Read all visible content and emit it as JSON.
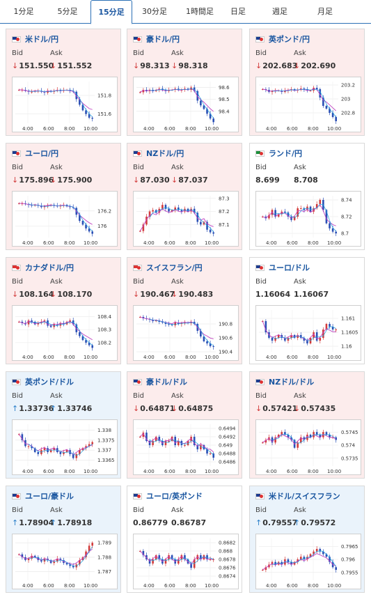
{
  "tabs": [
    {
      "label": "1分足",
      "active": false
    },
    {
      "label": "5分足",
      "active": false
    },
    {
      "label": "15分足",
      "active": true
    },
    {
      "label": "30分足",
      "active": false
    },
    {
      "label": "1時間足",
      "active": false
    },
    {
      "label": "日足",
      "active": false
    },
    {
      "label": "週足",
      "active": false
    },
    {
      "label": "月足",
      "active": false
    }
  ],
  "labels": {
    "bid": "Bid",
    "ask": "Ask"
  },
  "colors": {
    "up_candle": "#d23b3b",
    "down_candle": "#2a4fb5",
    "ma_line": "#c040c0",
    "ma_line2": "#1aa0e0",
    "card_down": "#fcecec",
    "card_up": "#eaf3fb"
  },
  "cards": [
    {
      "title": "米ドル/円",
      "trend": "down",
      "flag": [
        "#1d3c8f",
        "#d33"
      ],
      "bid": "151.550",
      "ask": "151.552",
      "chart_data": {
        "type": "candlestick",
        "x_ticks": [
          "4:00",
          "6:00",
          "8:00",
          "10:00"
        ],
        "y_ticks": [
          "151.8",
          "151.6"
        ],
        "ylim": [
          151.5,
          151.95
        ],
        "profile": [
          151.86,
          151.86,
          151.85,
          151.84,
          151.84,
          151.85,
          151.85,
          151.84,
          151.83,
          151.85,
          151.84,
          151.85,
          151.86,
          151.85,
          151.86,
          151.86,
          151.85,
          151.84,
          151.76,
          151.7,
          151.64,
          151.6,
          151.56,
          151.55
        ]
      }
    },
    {
      "title": "豪ドル/円",
      "trend": "down",
      "flag": [
        "#1d3c8f",
        "#d33"
      ],
      "bid": "98.313",
      "ask": "98.318",
      "chart_data": {
        "type": "candlestick",
        "x_ticks": [
          "4:00",
          "6:00",
          "8:00",
          "10:00"
        ],
        "y_ticks": [
          "98.6",
          "98.5",
          "98.4"
        ],
        "ylim": [
          98.3,
          98.65
        ],
        "profile": [
          98.56,
          98.58,
          98.57,
          98.58,
          98.57,
          98.58,
          98.59,
          98.58,
          98.57,
          98.58,
          98.58,
          98.59,
          98.58,
          98.58,
          98.59,
          98.58,
          98.6,
          98.57,
          98.49,
          98.45,
          98.42,
          98.38,
          98.34,
          98.31
        ]
      }
    },
    {
      "title": "英ポンド/円",
      "trend": "down",
      "flag": [
        "#1d3c8f",
        "#d33"
      ],
      "bid": "202.683",
      "ask": "202.690",
      "chart_data": {
        "type": "candlestick",
        "x_ticks": [
          "4:00",
          "6:00",
          "8:00",
          "10:00"
        ],
        "y_ticks": [
          "203.2",
          "203",
          "202.8"
        ],
        "ylim": [
          202.65,
          203.25
        ],
        "profile": [
          203.14,
          203.13,
          203.1,
          203.11,
          203.12,
          203.12,
          203.1,
          203.12,
          203.13,
          203.14,
          203.12,
          203.13,
          203.15,
          203.14,
          203.12,
          203.12,
          203.16,
          203.14,
          203.02,
          202.9,
          202.86,
          202.8,
          202.74,
          202.68
        ]
      }
    },
    {
      "title": "ユーロ/円",
      "trend": "down",
      "flag": [
        "#1d3c8f",
        "#d33"
      ],
      "bid": "175.896",
      "ask": "175.900",
      "chart_data": {
        "type": "candlestick",
        "x_ticks": [
          "4:00",
          "6:00",
          "8:00",
          "10:00"
        ],
        "y_ticks": [
          "176.2",
          "176"
        ],
        "ylim": [
          175.85,
          176.4
        ],
        "profile": [
          176.3,
          176.3,
          176.29,
          176.28,
          176.27,
          176.28,
          176.27,
          176.25,
          176.26,
          176.27,
          176.28,
          176.27,
          176.26,
          176.27,
          176.28,
          176.26,
          176.25,
          176.24,
          176.15,
          176.07,
          176.02,
          175.97,
          175.93,
          175.9
        ]
      }
    },
    {
      "title": "NZドル/円",
      "trend": "down",
      "flag": [
        "#1d3c8f",
        "#d33"
      ],
      "bid": "87.030",
      "ask": "87.037",
      "chart_data": {
        "type": "candlestick",
        "x_ticks": [
          "4:00",
          "6:00",
          "8:00",
          "10:00"
        ],
        "y_ticks": [
          "87.3",
          "87.2",
          "87.1"
        ],
        "ylim": [
          87.0,
          87.32
        ],
        "profile": [
          87.05,
          87.1,
          87.16,
          87.2,
          87.21,
          87.19,
          87.22,
          87.25,
          87.22,
          87.2,
          87.21,
          87.23,
          87.21,
          87.2,
          87.22,
          87.2,
          87.22,
          87.19,
          87.12,
          87.1,
          87.12,
          87.06,
          87.04,
          87.03
        ]
      }
    },
    {
      "title": "ランド/円",
      "trend": "flat",
      "flag": [
        "#1d8f3c",
        "#d33"
      ],
      "bid": "8.699",
      "ask": "8.708",
      "chart_data": {
        "type": "candlestick",
        "x_ticks": [
          "4:00",
          "6:00",
          "8:00",
          "10:00"
        ],
        "y_ticks": [
          "8.74",
          "8.72",
          "8.7"
        ],
        "ylim": [
          8.695,
          8.745
        ],
        "profile": [
          8.72,
          8.718,
          8.722,
          8.728,
          8.72,
          8.723,
          8.726,
          8.725,
          8.72,
          8.716,
          8.72,
          8.73,
          8.73,
          8.728,
          8.732,
          8.726,
          8.73,
          8.735,
          8.74,
          8.728,
          8.712,
          8.706,
          8.702,
          8.7
        ]
      }
    },
    {
      "title": "カナダドル/円",
      "trend": "down",
      "flag": [
        "#d33",
        "#d33"
      ],
      "bid": "108.164",
      "ask": "108.170",
      "chart_data": {
        "type": "candlestick",
        "x_ticks": [
          "4:00",
          "6:00",
          "8:00",
          "10:00"
        ],
        "y_ticks": [
          "108.4",
          "108.3",
          "108.2"
        ],
        "ylim": [
          108.13,
          108.45
        ],
        "profile": [
          108.36,
          108.35,
          108.34,
          108.37,
          108.36,
          108.34,
          108.35,
          108.36,
          108.37,
          108.33,
          108.32,
          108.34,
          108.33,
          108.35,
          108.34,
          108.36,
          108.37,
          108.34,
          108.28,
          108.25,
          108.22,
          108.2,
          108.18,
          108.16
        ]
      }
    },
    {
      "title": "スイスフラン/円",
      "trend": "down",
      "flag": [
        "#d33",
        "#d33"
      ],
      "bid": "190.467",
      "ask": "190.483",
      "chart_data": {
        "type": "candlestick",
        "x_ticks": [
          "4:00",
          "6:00",
          "8:00",
          "10:00"
        ],
        "y_ticks": [
          "190.8",
          "190.6",
          "190.4"
        ],
        "ylim": [
          190.4,
          191.0
        ],
        "profile": [
          190.9,
          190.88,
          190.87,
          190.86,
          190.84,
          190.85,
          190.83,
          190.82,
          190.8,
          190.79,
          190.78,
          190.82,
          190.8,
          190.81,
          190.82,
          190.81,
          190.83,
          190.8,
          190.7,
          190.62,
          190.55,
          190.52,
          190.48,
          190.47
        ]
      }
    },
    {
      "title": "ユーロ/ドル",
      "trend": "flat",
      "flag": [
        "#1d3c8f",
        "#d33"
      ],
      "bid": "1.16064",
      "ask": "1.16067",
      "chart_data": {
        "type": "candlestick",
        "x_ticks": [
          "4:00",
          "6:00",
          "8:00",
          "10:00"
        ],
        "y_ticks": [
          "1.161",
          "1.1605",
          "1.16"
        ],
        "ylim": [
          1.1598,
          1.1613
        ],
        "profile": [
          1.1609,
          1.1605,
          1.1603,
          1.1602,
          1.1603,
          1.1604,
          1.1603,
          1.1602,
          1.1603,
          1.1604,
          1.1603,
          1.1604,
          1.1603,
          1.1602,
          1.1601,
          1.1603,
          1.1605,
          1.1602,
          1.1603,
          1.1606,
          1.1608,
          1.1607,
          1.1606,
          1.1606
        ]
      }
    },
    {
      "title": "英ポンド/ドル",
      "trend": "up",
      "flag": [
        "#1d3c8f",
        "#d33"
      ],
      "bid": "1.33736",
      "ask": "1.33746",
      "chart_data": {
        "type": "candlestick",
        "x_ticks": [
          "4:00",
          "6:00",
          "8:00",
          "10:00"
        ],
        "y_ticks": [
          "1.338",
          "1.3375",
          "1.337",
          "1.3365"
        ],
        "ylim": [
          1.3362,
          1.3383
        ],
        "profile": [
          1.3378,
          1.3375,
          1.3372,
          1.3372,
          1.3371,
          1.3369,
          1.3368,
          1.337,
          1.3371,
          1.3369,
          1.337,
          1.3371,
          1.3369,
          1.3368,
          1.3369,
          1.337,
          1.3368,
          1.3366,
          1.3368,
          1.337,
          1.3371,
          1.3372,
          1.3373,
          1.3374
        ]
      }
    },
    {
      "title": "豪ドル/ドル",
      "trend": "down",
      "flag": [
        "#1d3c8f",
        "#d33"
      ],
      "bid": "0.64871",
      "ask": "0.64875",
      "chart_data": {
        "type": "candlestick",
        "x_ticks": [
          "4:00",
          "6:00",
          "8:00",
          "10:00"
        ],
        "y_ticks": [
          "0.6494",
          "0.6492",
          "0.649",
          "0.6488",
          "0.6486"
        ],
        "ylim": [
          0.6485,
          0.6495
        ],
        "profile": [
          0.6492,
          0.6493,
          0.6491,
          0.649,
          0.6491,
          0.6492,
          0.6491,
          0.649,
          0.6491,
          0.6491,
          0.6492,
          0.649,
          0.6491,
          0.649,
          0.649,
          0.6491,
          0.6492,
          0.649,
          0.6489,
          0.649,
          0.6489,
          0.6488,
          0.6488,
          0.6487
        ]
      }
    },
    {
      "title": "NZドル/ドル",
      "trend": "down",
      "flag": [
        "#1d3c8f",
        "#d33"
      ],
      "bid": "0.57421",
      "ask": "0.57435",
      "chart_data": {
        "type": "candlestick",
        "x_ticks": [
          "4:00",
          "6:00",
          "8:00",
          "10:00"
        ],
        "y_ticks": [
          "0.5745",
          "0.574",
          "0.5735"
        ],
        "ylim": [
          0.5732,
          0.5748
        ],
        "profile": [
          0.5741,
          0.5742,
          0.5743,
          0.5741,
          0.5743,
          0.5744,
          0.5745,
          0.5744,
          0.5743,
          0.5742,
          0.5739,
          0.5741,
          0.5743,
          0.5742,
          0.5744,
          0.5743,
          0.5745,
          0.5744,
          0.5743,
          0.5745,
          0.5744,
          0.5743,
          0.5743,
          0.5742
        ]
      }
    },
    {
      "title": "ユーロ/豪ドル",
      "trend": "up",
      "flag": [
        "#1d3c8f",
        "#d33"
      ],
      "bid": "1.78904",
      "ask": "1.78918",
      "chart_data": {
        "type": "candlestick",
        "x_ticks": [
          "4:00",
          "6:00",
          "8:00",
          "10:00"
        ],
        "y_ticks": [
          "1.789",
          "1.788",
          "1.787"
        ],
        "ylim": [
          1.7864,
          1.7893
        ],
        "profile": [
          1.7882,
          1.788,
          1.7878,
          1.7879,
          1.7881,
          1.788,
          1.7878,
          1.7877,
          1.7879,
          1.7878,
          1.7876,
          1.7877,
          1.7879,
          1.7878,
          1.7876,
          1.7875,
          1.7874,
          1.7873,
          1.7875,
          1.7878,
          1.788,
          1.7884,
          1.7888,
          1.789
        ]
      }
    },
    {
      "title": "ユーロ/英ポンド",
      "trend": "flat",
      "flag": [
        "#1d3c8f",
        "#d33"
      ],
      "bid": "0.86779",
      "ask": "0.86787",
      "chart_data": {
        "type": "candlestick",
        "x_ticks": [
          "4:00",
          "6:00",
          "8:00",
          "10:00"
        ],
        "y_ticks": [
          "0.8682",
          "0.868",
          "0.8678",
          "0.8676",
          "0.8674"
        ],
        "ylim": [
          0.8673,
          0.8683
        ],
        "profile": [
          0.868,
          0.8679,
          0.8678,
          0.8677,
          0.8678,
          0.8679,
          0.8678,
          0.8677,
          0.8678,
          0.8679,
          0.8678,
          0.8677,
          0.8678,
          0.8679,
          0.8678,
          0.8677,
          0.8676,
          0.8678,
          0.8679,
          0.8678,
          0.8679,
          0.8678,
          0.8678,
          0.8678
        ]
      }
    },
    {
      "title": "米ドル/スイスフラン",
      "trend": "up",
      "flag": [
        "#1d3c8f",
        "#d33"
      ],
      "bid": "0.79557",
      "ask": "0.79572",
      "chart_data": {
        "type": "candlestick",
        "x_ticks": [
          "4:00",
          "6:00",
          "8:00",
          "10:00"
        ],
        "y_ticks": [
          "0.7965",
          "0.796",
          "0.7955"
        ],
        "ylim": [
          0.7952,
          0.7968
        ],
        "profile": [
          0.7956,
          0.7957,
          0.7958,
          0.7959,
          0.7958,
          0.7959,
          0.7958,
          0.796,
          0.7959,
          0.7958,
          0.7959,
          0.796,
          0.7961,
          0.796,
          0.7961,
          0.7962,
          0.7963,
          0.7964,
          0.7963,
          0.7962,
          0.7961,
          0.7959,
          0.7957,
          0.7956
        ]
      }
    }
  ]
}
